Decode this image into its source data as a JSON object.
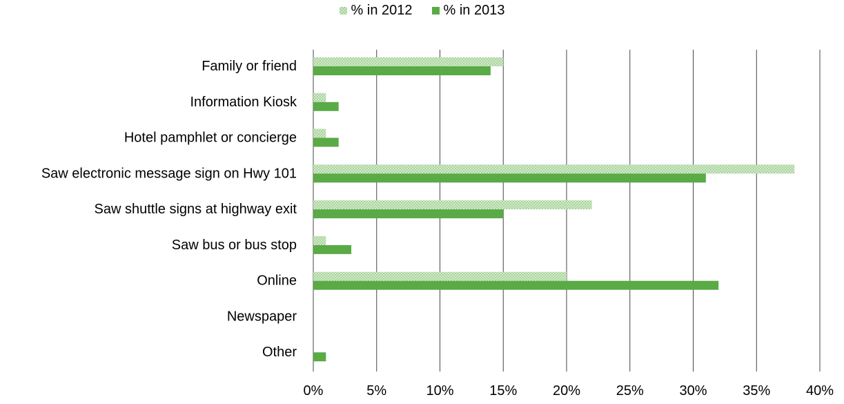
{
  "legend": {
    "series_2012": "% in 2012",
    "series_2013": "% in 2013"
  },
  "colors": {
    "series_2012_fill": "#dff0d8",
    "series_2012_hatch": "#9fcf93",
    "series_2013": "#5aaa46",
    "grid": "#444444"
  },
  "chart_data": {
    "type": "bar",
    "orientation": "horizontal",
    "categories": [
      "Family or friend",
      "Information Kiosk",
      "Hotel pamphlet or concierge",
      "Saw electronic message sign on Hwy 101",
      "Saw shuttle signs at highway exit",
      "Saw bus or bus stop",
      "Online",
      "Newspaper",
      "Other"
    ],
    "series": [
      {
        "name": "% in 2012",
        "values": [
          15,
          1,
          1,
          38,
          22,
          1,
          20,
          0,
          0
        ]
      },
      {
        "name": "% in 2013",
        "values": [
          14,
          2,
          2,
          31,
          15,
          3,
          32,
          0,
          1
        ]
      }
    ],
    "xlim": [
      0,
      40
    ],
    "x_ticks": [
      "0%",
      "5%",
      "10%",
      "15%",
      "20%",
      "25%",
      "30%",
      "35%",
      "40%"
    ],
    "title": "",
    "xlabel": "",
    "ylabel": "",
    "grid": "vertical",
    "legend_position": "top-center"
  }
}
